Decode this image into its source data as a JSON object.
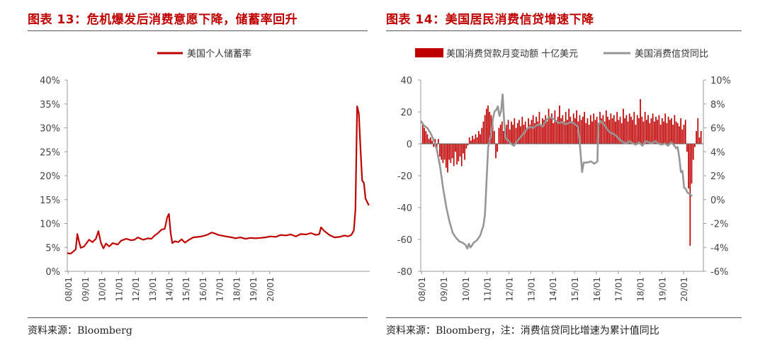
{
  "left": {
    "title": "图表 13：危机爆发后消费意愿下降，储蓄率回升",
    "source": "资料来源：Bloomberg",
    "chart_data": {
      "type": "line",
      "title": "",
      "xlabel": "",
      "ylabel": "",
      "ylim": [
        0,
        40
      ],
      "y_ticks": [
        "0%",
        "5%",
        "10%",
        "15%",
        "20%",
        "25%",
        "30%",
        "35%",
        "40%"
      ],
      "x_ticks": [
        "08/01",
        "09/01",
        "10/01",
        "11/01",
        "12/01",
        "13/01",
        "14/01",
        "15/01",
        "16/01",
        "17/01",
        "18/01",
        "19/01",
        "20/01"
      ],
      "legend_position": "top",
      "grid": false,
      "colors": {
        "series": "#c00000"
      },
      "series": [
        {
          "name": "美国个人储蓄率",
          "points": [
            [
              0.0,
              3.8
            ],
            [
              0.2,
              3.7
            ],
            [
              0.35,
              4.1
            ],
            [
              0.5,
              4.6
            ],
            [
              0.6,
              7.8
            ],
            [
              0.7,
              6.2
            ],
            [
              0.8,
              4.9
            ],
            [
              1.0,
              5.2
            ],
            [
              1.3,
              6.6
            ],
            [
              1.5,
              6.1
            ],
            [
              1.7,
              6.8
            ],
            [
              1.85,
              8.4
            ],
            [
              2.0,
              6.0
            ],
            [
              2.15,
              4.8
            ],
            [
              2.3,
              5.8
            ],
            [
              2.5,
              5.2
            ],
            [
              2.7,
              5.9
            ],
            [
              3.0,
              5.6
            ],
            [
              3.2,
              6.4
            ],
            [
              3.5,
              6.8
            ],
            [
              3.8,
              6.5
            ],
            [
              4.0,
              6.6
            ],
            [
              4.2,
              7.1
            ],
            [
              4.5,
              6.6
            ],
            [
              4.8,
              6.9
            ],
            [
              5.0,
              6.8
            ],
            [
              5.2,
              7.5
            ],
            [
              5.4,
              8.0
            ],
            [
              5.6,
              8.7
            ],
            [
              5.8,
              8.9
            ],
            [
              5.95,
              11.3
            ],
            [
              6.05,
              12.0
            ],
            [
              6.15,
              8.0
            ],
            [
              6.25,
              5.9
            ],
            [
              6.4,
              6.3
            ],
            [
              6.6,
              6.1
            ],
            [
              6.8,
              6.7
            ],
            [
              7.0,
              6.0
            ],
            [
              7.2,
              6.5
            ],
            [
              7.5,
              7.1
            ],
            [
              7.8,
              7.2
            ],
            [
              8.0,
              7.3
            ],
            [
              8.3,
              7.6
            ],
            [
              8.6,
              8.1
            ],
            [
              8.8,
              7.9
            ],
            [
              9.0,
              7.6
            ],
            [
              9.3,
              7.4
            ],
            [
              9.6,
              7.2
            ],
            [
              9.8,
              7.1
            ],
            [
              10.0,
              6.9
            ],
            [
              10.3,
              7.1
            ],
            [
              10.6,
              6.8
            ],
            [
              10.9,
              7.0
            ],
            [
              11.2,
              6.9
            ],
            [
              11.5,
              7.0
            ],
            [
              11.8,
              7.1
            ],
            [
              12.1,
              7.3
            ],
            [
              12.4,
              7.2
            ],
            [
              12.7,
              7.6
            ],
            [
              13.0,
              7.5
            ],
            [
              13.3,
              7.7
            ],
            [
              13.6,
              7.3
            ],
            [
              13.9,
              7.8
            ],
            [
              14.2,
              7.7
            ],
            [
              14.5,
              8.0
            ],
            [
              14.8,
              7.6
            ],
            [
              15.0,
              7.8
            ],
            [
              15.1,
              9.2
            ],
            [
              15.3,
              8.4
            ],
            [
              15.6,
              7.6
            ],
            [
              15.9,
              7.1
            ],
            [
              16.2,
              7.2
            ],
            [
              16.5,
              7.5
            ],
            [
              16.7,
              7.3
            ],
            [
              16.9,
              7.6
            ],
            [
              17.05,
              8.5
            ],
            [
              17.15,
              12.9
            ],
            [
              17.25,
              34.5
            ],
            [
              17.35,
              33.0
            ],
            [
              17.45,
              25.5
            ],
            [
              17.55,
              19.0
            ],
            [
              17.65,
              18.5
            ],
            [
              17.75,
              15.2
            ],
            [
              17.85,
              14.5
            ],
            [
              17.95,
              13.8
            ]
          ]
        }
      ]
    }
  },
  "right": {
    "title": "图表 14：美国居民消费信贷增速下降",
    "source": "资料来源：Bloomberg，注：消费信贷同比增速为累计值同比",
    "chart_data": {
      "type": "bar",
      "title": "",
      "xlabel": "",
      "ylabel": "",
      "ylim": [
        -80,
        40
      ],
      "y2lim": [
        -6,
        10
      ],
      "y_ticks": [
        "40",
        "20",
        "0",
        "-20",
        "-40",
        "-60",
        "-80"
      ],
      "y2_ticks": [
        "10%",
        "8%",
        "6%",
        "4%",
        "2%",
        "0%",
        "-2%",
        "-4%",
        "-6%"
      ],
      "x_ticks": [
        "08/01",
        "09/01",
        "10/01",
        "11/01",
        "12/01",
        "13/01",
        "14/01",
        "15/01",
        "16/01",
        "17/01",
        "18/01",
        "19/01",
        "20/01"
      ],
      "legend_position": "top",
      "grid": false,
      "colors": {
        "bars": "#c00000",
        "line": "#969696"
      },
      "series": [
        {
          "name": "美国消费贷款月变动额 十亿美元",
          "kind": "bar",
          "values": [
            12,
            10,
            8,
            6,
            3,
            4,
            2,
            -2,
            3,
            -5,
            3,
            -8,
            -10,
            -12,
            -10,
            -15,
            -18,
            -10,
            -12,
            -9,
            -14,
            -5,
            -13,
            -11,
            -8,
            -14,
            -6,
            -10,
            -3,
            -1,
            4,
            2,
            5,
            3,
            6,
            4,
            8,
            6,
            10,
            14,
            18,
            22,
            24,
            20,
            18,
            12,
            8,
            -9,
            -5,
            10,
            12,
            14,
            8,
            10,
            12,
            15,
            9,
            14,
            12,
            16,
            10,
            13,
            15,
            11,
            17,
            12,
            14,
            10,
            16,
            12,
            15,
            18,
            13,
            17,
            14,
            20,
            12,
            16,
            15,
            18,
            14,
            22,
            16,
            19,
            13,
            21,
            15,
            17,
            24,
            16,
            18,
            14,
            20,
            15,
            22,
            17,
            13,
            19,
            16,
            21,
            14,
            18,
            15,
            17,
            20,
            13,
            16,
            12,
            18,
            14,
            19,
            15,
            17,
            13,
            20,
            16,
            18,
            14,
            21,
            17,
            15,
            19,
            16,
            18,
            14,
            20,
            15,
            17,
            13,
            22,
            16,
            18,
            14,
            19,
            17,
            15,
            20,
            12,
            18,
            16,
            28,
            17,
            14,
            20,
            15,
            18,
            13,
            16,
            19,
            14,
            17,
            15,
            18,
            12,
            16,
            14,
            19,
            13,
            17,
            15,
            16,
            12,
            18,
            14,
            13,
            11,
            16,
            9,
            12,
            15,
            -5,
            -28,
            -64,
            -25,
            -10,
            -2,
            8,
            16,
            4,
            8
          ]
        },
        {
          "name": "美国消费信贷同比",
          "kind": "line",
          "axis": "right",
          "points": [
            [
              0.0,
              6.6
            ],
            [
              0.2,
              6.2
            ],
            [
              0.4,
              6.0
            ],
            [
              0.6,
              5.6
            ],
            [
              0.8,
              5.0
            ],
            [
              1.0,
              4.2
            ],
            [
              1.2,
              2.8
            ],
            [
              1.4,
              0.9
            ],
            [
              1.6,
              -0.7
            ],
            [
              1.8,
              -1.9
            ],
            [
              2.0,
              -2.8
            ],
            [
              2.2,
              -3.2
            ],
            [
              2.4,
              -3.5
            ],
            [
              2.6,
              -3.6
            ],
            [
              2.8,
              -3.8
            ],
            [
              2.9,
              -4.1
            ],
            [
              3.0,
              -3.7
            ],
            [
              3.1,
              -4.0
            ],
            [
              3.3,
              -3.6
            ],
            [
              3.5,
              -3.4
            ],
            [
              3.7,
              -3.0
            ],
            [
              3.9,
              -2.2
            ],
            [
              4.0,
              -1.2
            ],
            [
              4.2,
              4.4
            ],
            [
              4.4,
              5.6
            ],
            [
              4.5,
              6.8
            ],
            [
              4.6,
              7.4
            ],
            [
              4.7,
              7.5
            ],
            [
              4.8,
              7.8
            ],
            [
              4.9,
              7.0
            ],
            [
              5.0,
              7.4
            ],
            [
              5.1,
              8.8
            ],
            [
              5.2,
              6.4
            ],
            [
              5.3,
              5.1
            ],
            [
              5.4,
              5.0
            ],
            [
              5.6,
              4.7
            ],
            [
              5.8,
              4.5
            ],
            [
              6.0,
              4.9
            ],
            [
              6.2,
              5.2
            ],
            [
              6.4,
              5.5
            ],
            [
              6.6,
              5.9
            ],
            [
              6.8,
              6.1
            ],
            [
              7.0,
              6.0
            ],
            [
              7.2,
              6.2
            ],
            [
              7.4,
              6.3
            ],
            [
              7.6,
              6.1
            ],
            [
              7.8,
              6.6
            ],
            [
              8.0,
              6.9
            ],
            [
              8.2,
              6.8
            ],
            [
              8.4,
              6.6
            ],
            [
              8.6,
              6.4
            ],
            [
              8.8,
              6.5
            ],
            [
              9.0,
              6.3
            ],
            [
              9.2,
              6.4
            ],
            [
              9.4,
              6.5
            ],
            [
              9.6,
              6.3
            ],
            [
              9.8,
              6.1
            ],
            [
              9.9,
              4.8
            ],
            [
              10.0,
              3.1
            ],
            [
              10.05,
              2.3
            ],
            [
              10.15,
              3.1
            ],
            [
              10.4,
              3.1
            ],
            [
              10.6,
              3.2
            ],
            [
              10.8,
              3.0
            ],
            [
              10.9,
              3.1
            ],
            [
              11.0,
              3.2
            ],
            [
              11.05,
              6.2
            ],
            [
              11.2,
              6.6
            ],
            [
              11.4,
              6.3
            ],
            [
              11.6,
              5.9
            ],
            [
              11.8,
              5.6
            ],
            [
              12.0,
              5.5
            ],
            [
              12.2,
              5.3
            ],
            [
              12.4,
              5.0
            ],
            [
              12.6,
              4.8
            ],
            [
              12.8,
              4.7
            ],
            [
              13.0,
              4.9
            ],
            [
              13.2,
              4.7
            ],
            [
              13.4,
              4.6
            ],
            [
              13.6,
              4.8
            ],
            [
              13.8,
              4.5
            ],
            [
              14.0,
              4.9
            ],
            [
              14.2,
              4.8
            ],
            [
              14.4,
              4.7
            ],
            [
              14.6,
              4.9
            ],
            [
              14.8,
              4.7
            ],
            [
              15.0,
              4.6
            ],
            [
              15.2,
              4.7
            ],
            [
              15.4,
              4.5
            ],
            [
              15.6,
              4.8
            ],
            [
              15.8,
              4.5
            ],
            [
              15.9,
              4.3
            ],
            [
              16.0,
              4.4
            ],
            [
              16.1,
              3.5
            ],
            [
              16.2,
              2.3
            ],
            [
              16.3,
              2.4
            ],
            [
              16.4,
              1.0
            ],
            [
              16.5,
              0.9
            ],
            [
              16.6,
              0.6
            ],
            [
              16.7,
              0.5
            ],
            [
              16.8,
              0.4
            ],
            [
              16.9,
              0.3
            ]
          ]
        }
      ]
    }
  }
}
